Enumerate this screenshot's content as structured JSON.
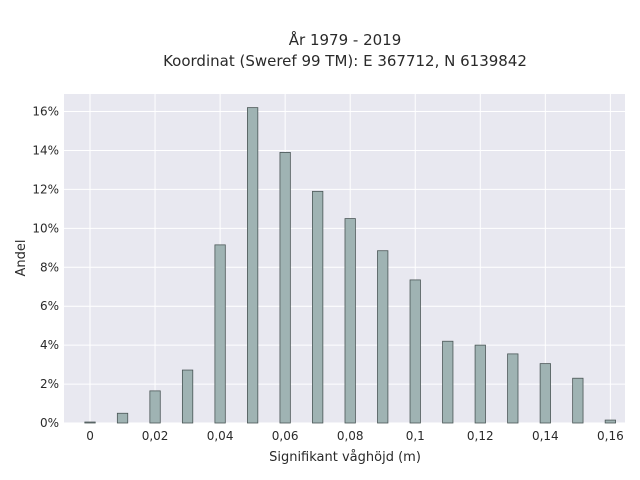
{
  "chart_data": {
    "type": "bar",
    "title_line1": "År 1979 - 2019",
    "title_line2": "Koordinat (Sweref 99 TM): E 367712, N 6139842",
    "xlabel": "Signifikant våghöjd (m)",
    "ylabel": "Andel",
    "x": [
      0,
      0.01,
      0.02,
      0.03,
      0.04,
      0.05,
      0.06,
      0.07,
      0.08,
      0.09,
      0.1,
      0.11,
      0.12,
      0.13,
      0.14,
      0.15,
      0.16
    ],
    "values": [
      0.05,
      0.5,
      1.65,
      2.72,
      9.15,
      16.2,
      13.9,
      11.9,
      10.5,
      8.85,
      7.35,
      4.2,
      4.0,
      3.55,
      3.05,
      2.3,
      0.15
    ],
    "value_unit": "%",
    "xlim": [
      -0.008,
      0.1645
    ],
    "ylim": [
      0,
      16.9
    ],
    "x_ticks": [
      0,
      0.02,
      0.04,
      0.06,
      0.08,
      0.1,
      0.12,
      0.14,
      0.16
    ],
    "x_tick_labels": [
      "0",
      "0,02",
      "0,04",
      "0,06",
      "0,08",
      "0,1",
      "0,12",
      "0,14",
      "0,16"
    ],
    "y_ticks": [
      0,
      2,
      4,
      6,
      8,
      10,
      12,
      14,
      16
    ],
    "y_tick_labels": [
      "0%",
      "2%",
      "4%",
      "6%",
      "8%",
      "10%",
      "12%",
      "14%",
      "16%"
    ],
    "grid": true,
    "bar_color": "#9fb3b3",
    "bar_edge_color": "#4a5656",
    "plot_background": "#e8e8f0"
  }
}
